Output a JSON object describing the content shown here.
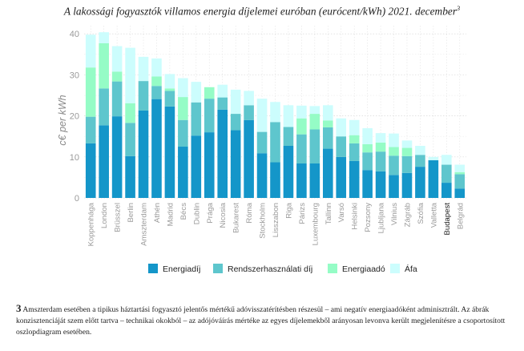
{
  "chart_data": {
    "type": "bar",
    "stacked": true,
    "title": "A lakossági fogyasztók villamos energia díjelemei euróban (eurócent/kWh) 2021. december",
    "title_footnote_mark": "3",
    "ylabel": "c€ per kWh",
    "xlabel": "",
    "ylim": [
      0,
      42
    ],
    "yticks": [
      0,
      10,
      20,
      30,
      40
    ],
    "grid": true,
    "legend_position": "bottom",
    "highlight_category": "Budapest",
    "categories": [
      "Koppenhága",
      "London",
      "Brüsszel",
      "Berlin",
      "Amszterdam",
      "Athén",
      "Madrid",
      "Bécs",
      "Dublin",
      "Prága",
      "Nicosia",
      "Bukarest",
      "Róma",
      "Stockholm",
      "Lisszabon",
      "Riga",
      "Párizs",
      "Luxembourg",
      "Tallinn",
      "Varsó",
      "Helsinki",
      "Pozsony",
      "Ljubljana",
      "Vilnius",
      "Zágráb",
      "Szófia",
      "Valletta",
      "Budapest",
      "Belgrád"
    ],
    "series": [
      {
        "name": "Energiadíj",
        "color": "#1496c9",
        "values": [
          13.3,
          17.7,
          19.9,
          10.2,
          21.3,
          24.1,
          22.3,
          12.5,
          15.2,
          16.0,
          21.5,
          16.5,
          19.0,
          10.9,
          8.7,
          12.7,
          8.4,
          8.4,
          12.0,
          10.0,
          9.0,
          6.8,
          6.5,
          5.6,
          6.1,
          7.6,
          9.2,
          3.7,
          2.3
        ]
      },
      {
        "name": "Rendszerhasználati díj",
        "color": "#5ec6cd",
        "values": [
          6.5,
          9.0,
          8.5,
          8.1,
          7.2,
          3.2,
          3.8,
          6.5,
          8.1,
          8.2,
          3.0,
          4.0,
          3.6,
          5.2,
          9.8,
          4.6,
          7.1,
          8.3,
          5.2,
          5.0,
          4.3,
          4.3,
          4.8,
          4.7,
          4.1,
          2.9,
          0.0,
          4.4,
          3.5
        ]
      },
      {
        "name": "Energiaadó",
        "color": "#95fcc6",
        "values": [
          12.0,
          11.0,
          2.4,
          4.8,
          0.0,
          2.3,
          0.6,
          5.6,
          0.0,
          2.8,
          0.0,
          0.0,
          0.0,
          0.0,
          0.0,
          0.0,
          3.9,
          3.8,
          1.7,
          0.0,
          2.0,
          2.0,
          2.2,
          2.1,
          2.0,
          0.0,
          0.0,
          0.0,
          0.5
        ]
      },
      {
        "name": "Áfa",
        "color": "#ccfdfd",
        "values": [
          8.0,
          2.7,
          6.2,
          13.5,
          5.9,
          4.4,
          3.5,
          4.6,
          5.0,
          0.0,
          3.1,
          5.9,
          3.5,
          8.1,
          4.9,
          5.3,
          3.1,
          1.9,
          3.7,
          4.4,
          3.7,
          3.9,
          2.3,
          3.3,
          1.8,
          2.2,
          0.8,
          2.4,
          1.8
        ]
      }
    ]
  },
  "footnote": {
    "mark": "3",
    "text": "Amszterdam esetében a tipikus háztartási fogyasztó jelentős mértékű adóvisszatérítésben részesül – ami negatív energiaadóként adminisztrált. Az ábrák konzisztenciáját szem előtt tartva – technikai okokból – az adójóváírás mértéke az egyes díjelemekből arányosan levonva került megjelenítésre a csoportosított oszlopdiagram esetében."
  }
}
